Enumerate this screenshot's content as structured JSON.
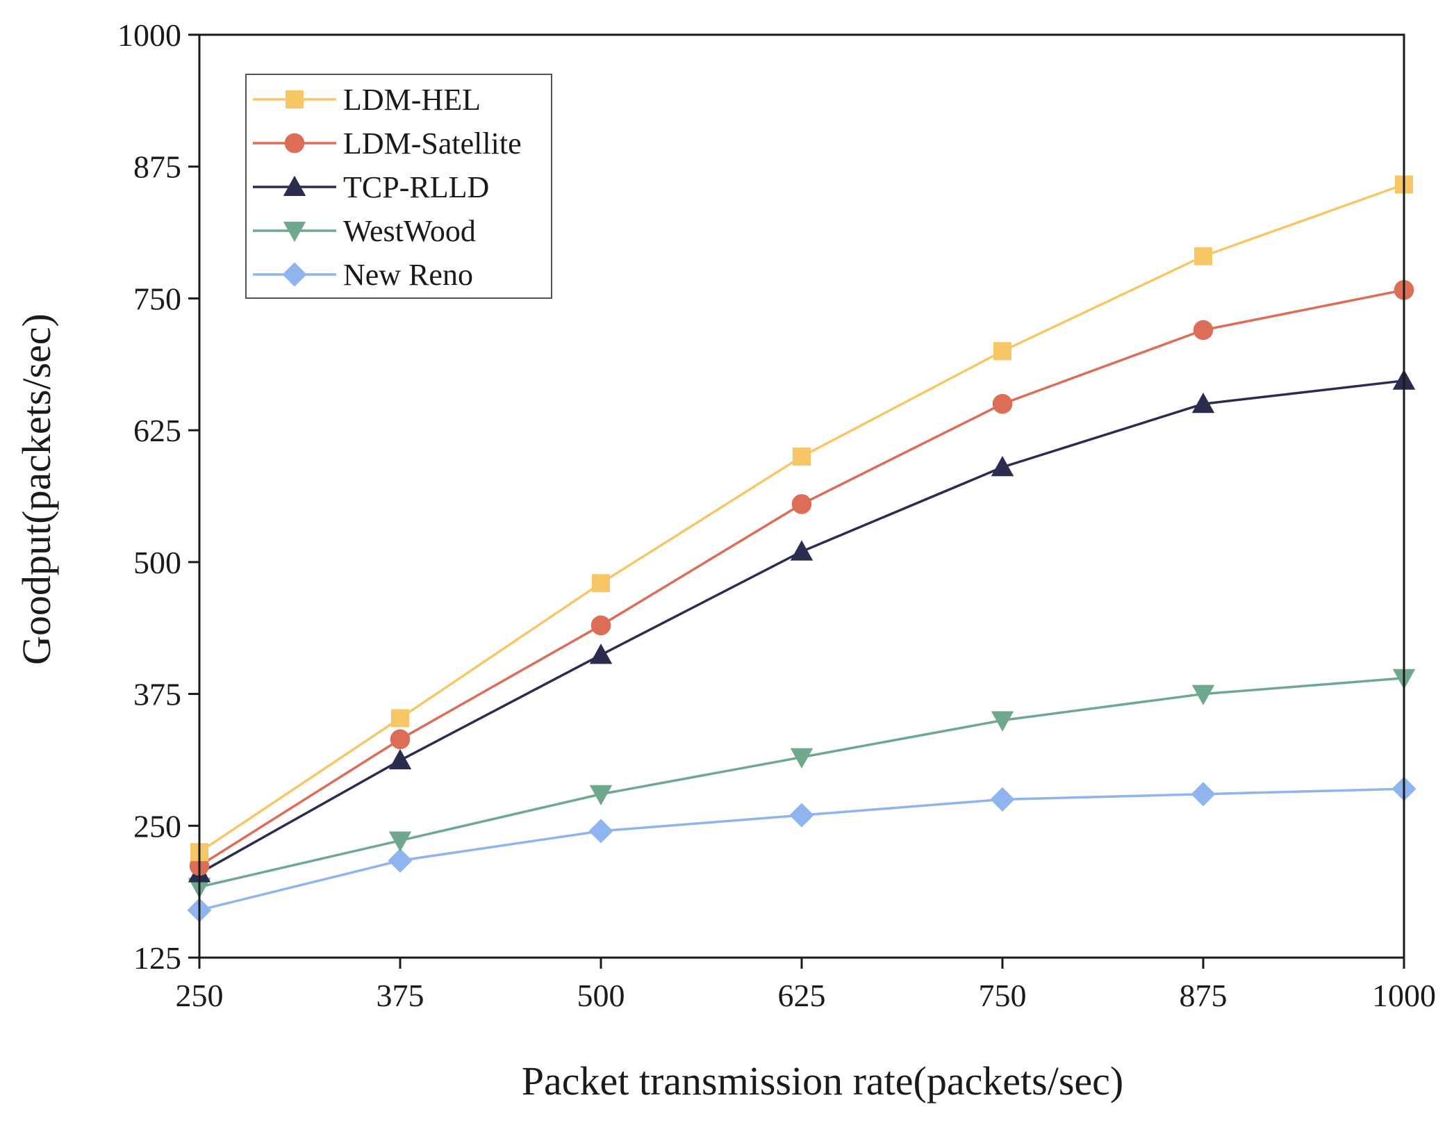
{
  "chart_data": {
    "type": "line",
    "title": "",
    "xlabel": "Packet transmission rate(packets/sec)",
    "ylabel": "Goodput(packets/sec)",
    "x": [
      250,
      375,
      500,
      625,
      750,
      875,
      1000
    ],
    "xlim": [
      250,
      1000
    ],
    "ylim": [
      125,
      1000
    ],
    "xticks": [
      "250",
      "375",
      "500",
      "625",
      "750",
      "875",
      "1000"
    ],
    "yticks": [
      "125",
      "250",
      "375",
      "500",
      "625",
      "750",
      "875",
      "1000"
    ],
    "grid": false,
    "legend_position": "top-left",
    "series": [
      {
        "name": "LDM-HEL",
        "marker": "square",
        "color": "#f7c667",
        "values": [
          225,
          352,
          480,
          600,
          700,
          790,
          858
        ]
      },
      {
        "name": "LDM-Satellite",
        "marker": "circle",
        "color": "#dc6e57",
        "values": [
          212,
          332,
          440,
          555,
          650,
          720,
          758
        ]
      },
      {
        "name": "TCP-RLLD",
        "marker": "triangle-up",
        "color": "#2b2d4f",
        "values": [
          205,
          312,
          412,
          510,
          590,
          650,
          672
        ]
      },
      {
        "name": "WestWood",
        "marker": "triangle-down",
        "color": "#6fa88d",
        "values": [
          192,
          236,
          280,
          315,
          350,
          375,
          390
        ]
      },
      {
        "name": "New Reno",
        "marker": "diamond",
        "color": "#8fb4ee",
        "values": [
          170,
          217,
          245,
          260,
          275,
          280,
          285
        ]
      }
    ]
  }
}
